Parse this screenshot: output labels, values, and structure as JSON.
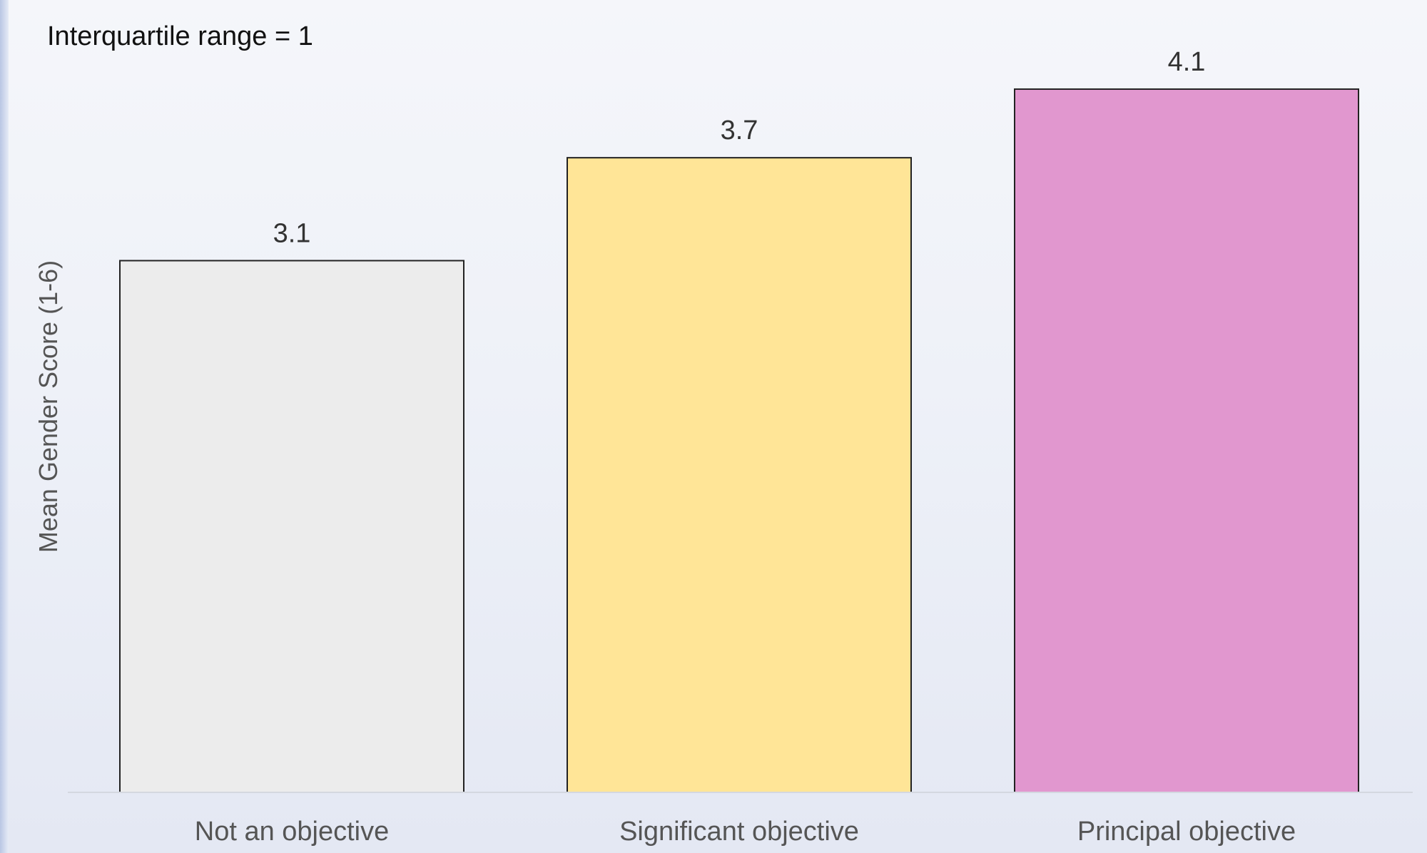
{
  "chart_data": {
    "type": "bar",
    "title": "",
    "annotation": "Interquartile range = 1",
    "ylabel": "Mean Gender Score (1-6)",
    "xlabel": "",
    "ylim": [
      0,
      4.1
    ],
    "grid": false,
    "categories": [
      "Not an objective",
      "Significant objective",
      "Principal objective"
    ],
    "values": [
      3.1,
      3.7,
      4.1
    ],
    "data_labels": [
      "3.1",
      "3.7",
      "4.1"
    ],
    "colors": [
      "#ececec",
      "#ffe597",
      "#e197cf"
    ],
    "bar_border_color": "#222222"
  }
}
